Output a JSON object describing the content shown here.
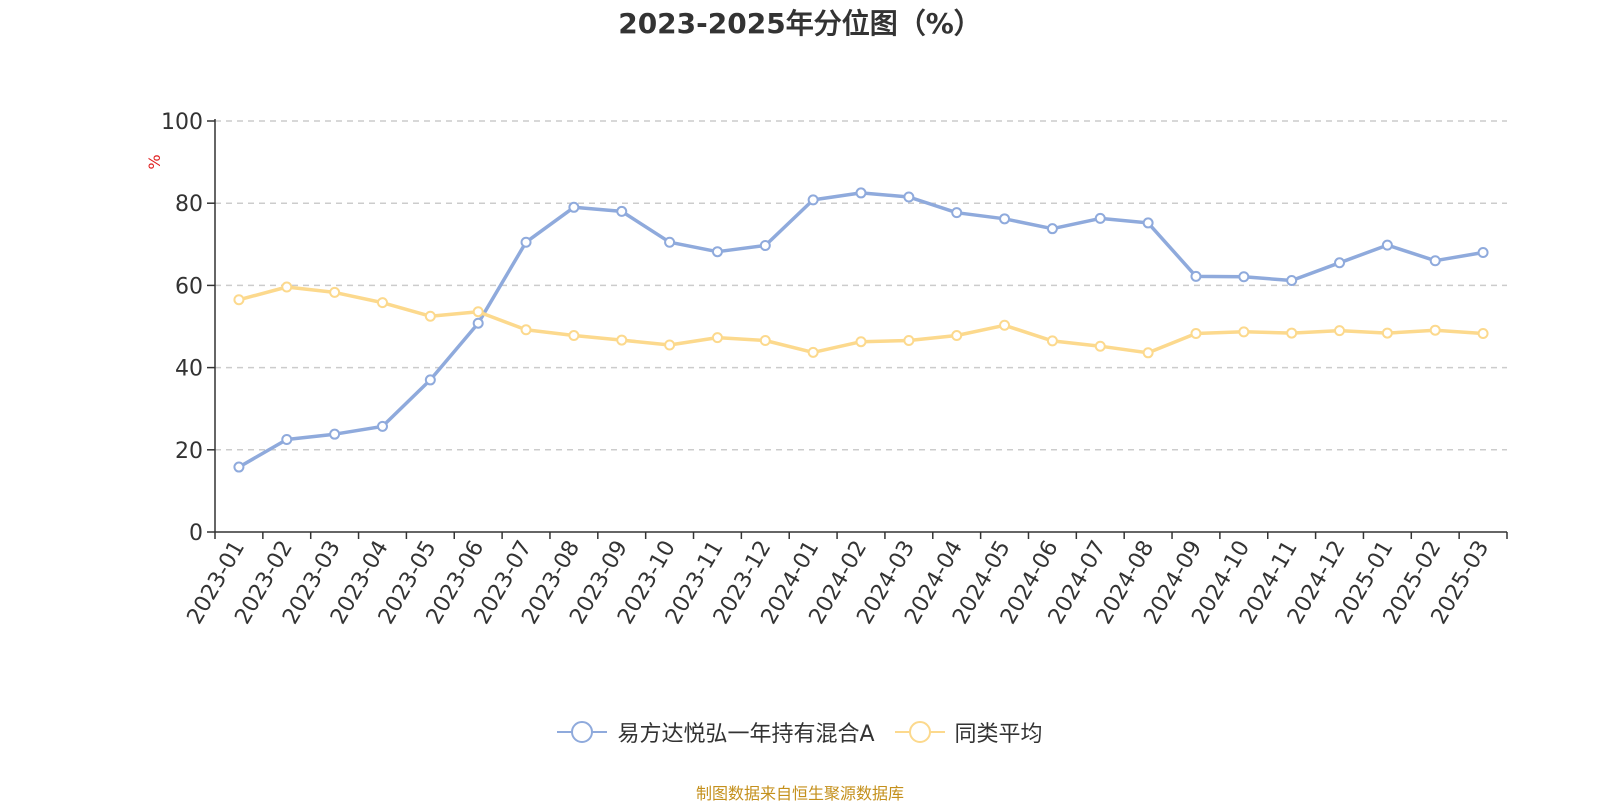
{
  "chart_data": {
    "type": "line",
    "title": "2023-2025年分位图（%）",
    "ylabel": "%",
    "xlabel": "",
    "ylim": [
      0,
      100
    ],
    "yticks": [
      0,
      20,
      40,
      60,
      80,
      100
    ],
    "grid": "horizontal dashed",
    "legend_position": "bottom-center",
    "categories": [
      "2023-01",
      "2023-02",
      "2023-03",
      "2023-04",
      "2023-05",
      "2023-06",
      "2023-07",
      "2023-08",
      "2023-09",
      "2023-10",
      "2023-11",
      "2023-12",
      "2024-01",
      "2024-02",
      "2024-03",
      "2024-04",
      "2024-05",
      "2024-06",
      "2024-07",
      "2024-08",
      "2024-09",
      "2024-10",
      "2024-11",
      "2024-12",
      "2025-01",
      "2025-02",
      "2025-03"
    ],
    "series": [
      {
        "name": "易方达悦弘一年持有混合A",
        "color": "#8faadc",
        "values": [
          15.8,
          22.5,
          23.8,
          25.7,
          37,
          50.8,
          70.5,
          79,
          78,
          70.5,
          68.2,
          69.7,
          80.8,
          82.5,
          81.5,
          77.7,
          76.2,
          73.8,
          76.3,
          75.2,
          62.2,
          62.1,
          61.2,
          65.5,
          69.8,
          66,
          68
        ]
      },
      {
        "name": "同类平均",
        "color": "#fcd98d",
        "values": [
          56.5,
          59.6,
          58.3,
          55.8,
          52.5,
          53.6,
          49.2,
          47.8,
          46.7,
          45.5,
          47.3,
          46.6,
          43.7,
          46.3,
          46.6,
          47.8,
          50.3,
          46.5,
          45.2,
          43.6,
          48.3,
          48.7,
          48.4,
          49,
          48.4,
          49.1,
          48.3
        ]
      }
    ]
  },
  "footer": {
    "source": "制图数据来自恒生聚源数据库"
  },
  "colors": {
    "axis": "#333333",
    "grid": "#cccccc",
    "unit_label": "#e02020",
    "source": "#c4901c"
  }
}
